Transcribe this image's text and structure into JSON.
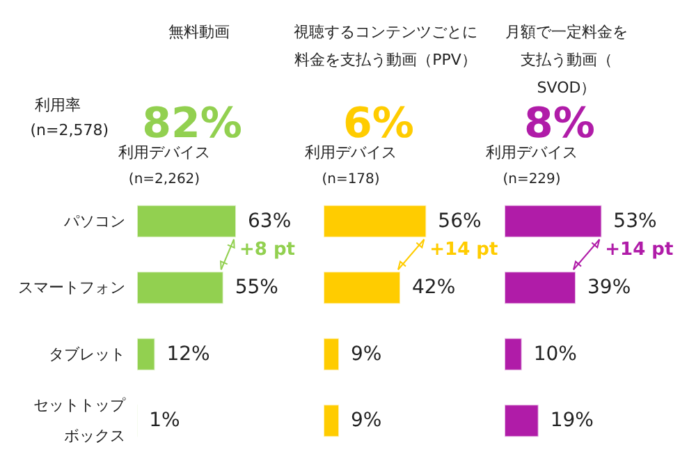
{
  "chart_data": [
    {
      "type": "bar",
      "orientation": "horizontal",
      "title": "無料動画",
      "categories": [
        "パソコン",
        "スマートフォン",
        "タブレット",
        "セットトップボックス"
      ],
      "values": [
        63,
        55,
        12,
        1
      ],
      "value_labels": [
        "63%",
        "55%",
        "12%",
        "1%"
      ],
      "color": "#92d050",
      "tick_labels": "y",
      "annotations": [
        "82%",
        "利用デバイス",
        "(n=2,262)",
        "+8 pt",
        "利用率",
        "(n=2,578)"
      ]
    },
    {
      "type": "bar",
      "orientation": "horizontal",
      "title": "視聴するコンテンツごとに料金を支払う動画（PPV）",
      "categories": [
        null,
        null,
        null,
        null
      ],
      "values": [
        56,
        42,
        9,
        9
      ],
      "value_labels": [
        "56%",
        "42%",
        "9%",
        "9%"
      ],
      "color": "#ffcc00",
      "tick_labels": false,
      "annotations": [
        "6%",
        "利用デバイス",
        "(n=178)",
        "+14 pt"
      ]
    },
    {
      "type": "bar",
      "orientation": "horizontal",
      "title": "月額で一定料金を支払う動画（SVOD）",
      "categories": [
        null,
        null,
        null,
        null
      ],
      "values": [
        53,
        39,
        10,
        19
      ],
      "value_labels": [
        "53%",
        "39%",
        "10%",
        "19%"
      ],
      "color": "#b01ca8",
      "tick_labels": false,
      "annotations": [
        "8%",
        "利用デバイス",
        "(n=229)",
        "+14 pt"
      ]
    }
  ]
}
